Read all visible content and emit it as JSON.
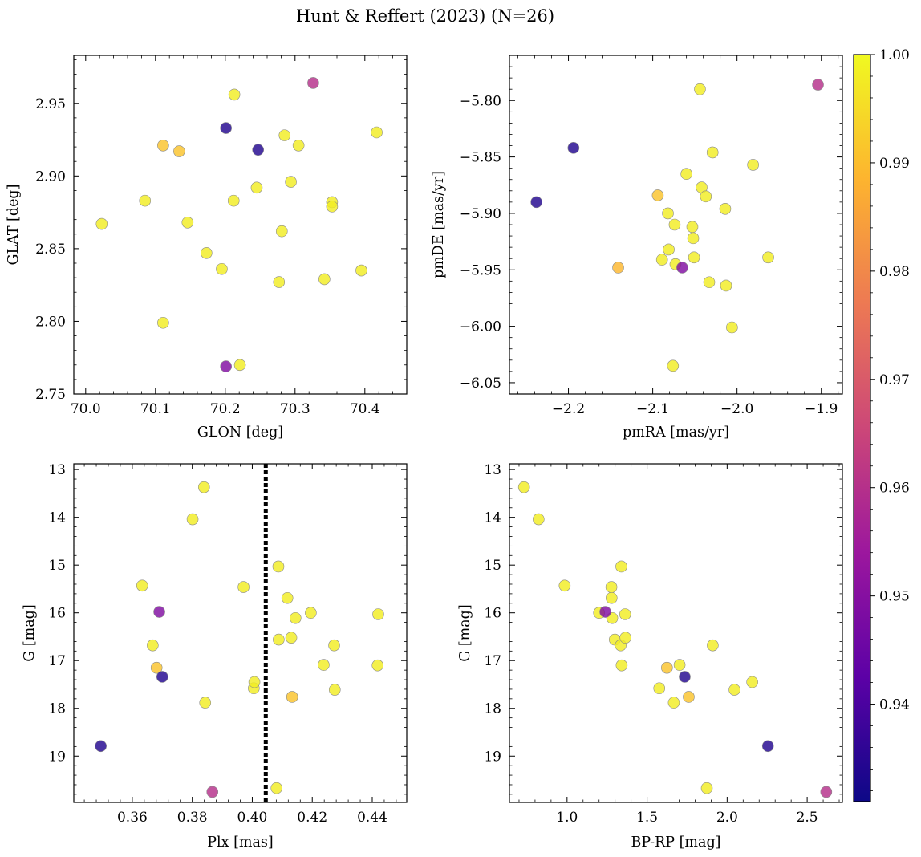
{
  "chart_data": {
    "title": "Hunt & Reffert (2023) (N=26)",
    "colormap": "plasma",
    "colorbar": {
      "range": [
        0.931,
        1.0
      ],
      "ticks": [
        0.94,
        0.95,
        0.96,
        0.97,
        0.98,
        0.99,
        1.0
      ],
      "tick_labels": [
        "0.94",
        "0.95",
        "0.96",
        "0.97",
        "0.98",
        "0.99",
        "1.00"
      ],
      "gradient_stops": [
        "#0d0887",
        "#5c01a6",
        "#9c179e",
        "#cc4778",
        "#ed7953",
        "#fdb42f",
        "#f0f921"
      ]
    },
    "charts": [
      {
        "type": "scatter",
        "id": "radec",
        "xlabel": "GLON [deg]",
        "ylabel": "GLAT [deg]",
        "xlim": [
          69.983,
          70.46
        ],
        "ylim": [
          2.75,
          2.983
        ],
        "x_ticks": [
          70.0,
          70.1,
          70.2,
          70.3,
          70.4
        ],
        "x_tick_labels": [
          "70.0",
          "70.1",
          "70.2",
          "70.3",
          "70.4"
        ],
        "y_ticks": [
          2.75,
          2.8,
          2.85,
          2.9,
          2.95
        ],
        "y_tick_labels": [
          "2.75",
          "2.80",
          "2.85",
          "2.90",
          "2.95"
        ],
        "points": [
          {
            "x": 70.023,
            "y": 2.867,
            "p": 0.998
          },
          {
            "x": 70.085,
            "y": 2.883,
            "p": 0.998
          },
          {
            "x": 70.111,
            "y": 2.921,
            "p": 0.991
          },
          {
            "x": 70.134,
            "y": 2.917,
            "p": 0.991
          },
          {
            "x": 70.146,
            "y": 2.868,
            "p": 0.998
          },
          {
            "x": 70.111,
            "y": 2.799,
            "p": 0.998
          },
          {
            "x": 70.173,
            "y": 2.847,
            "p": 0.998
          },
          {
            "x": 70.195,
            "y": 2.836,
            "p": 0.998
          },
          {
            "x": 70.201,
            "y": 2.933,
            "p": 0.934
          },
          {
            "x": 70.213,
            "y": 2.956,
            "p": 0.998
          },
          {
            "x": 70.212,
            "y": 2.883,
            "p": 0.998
          },
          {
            "x": 70.201,
            "y": 2.769,
            "p": 0.949
          },
          {
            "x": 70.221,
            "y": 2.77,
            "p": 0.998
          },
          {
            "x": 70.245,
            "y": 2.892,
            "p": 0.998
          },
          {
            "x": 70.247,
            "y": 2.918,
            "p": 0.934
          },
          {
            "x": 70.277,
            "y": 2.827,
            "p": 0.998
          },
          {
            "x": 70.281,
            "y": 2.862,
            "p": 0.998
          },
          {
            "x": 70.285,
            "y": 2.928,
            "p": 0.998
          },
          {
            "x": 70.294,
            "y": 2.896,
            "p": 0.998
          },
          {
            "x": 70.305,
            "y": 2.921,
            "p": 0.998
          },
          {
            "x": 70.326,
            "y": 2.964,
            "p": 0.96
          },
          {
            "x": 70.342,
            "y": 2.829,
            "p": 0.998
          },
          {
            "x": 70.353,
            "y": 2.882,
            "p": 0.998
          },
          {
            "x": 70.353,
            "y": 2.879,
            "p": 0.998
          },
          {
            "x": 70.395,
            "y": 2.835,
            "p": 0.998
          },
          {
            "x": 70.417,
            "y": 2.93,
            "p": 0.998
          }
        ]
      },
      {
        "type": "scatter",
        "id": "pm",
        "xlabel": "pmRA [mas/yr]",
        "ylabel": "pmDE [mas/yr]",
        "xlim": [
          -2.27,
          -1.875
        ],
        "ylim": [
          -6.06,
          -5.76
        ],
        "x_ticks": [
          -2.2,
          -2.1,
          -2.0,
          -1.9
        ],
        "x_tick_labels": [
          "−2.2",
          "−2.1",
          "−2.0",
          "−1.9"
        ],
        "y_ticks": [
          -6.05,
          -6.0,
          -5.95,
          -5.9,
          -5.85,
          -5.8
        ],
        "y_tick_labels": [
          "−6.05",
          "−6.00",
          "−5.95",
          "−5.90",
          "−5.85",
          "−5.80"
        ],
        "points": [
          {
            "x": -2.238,
            "y": -5.89,
            "p": 0.934
          },
          {
            "x": -2.194,
            "y": -5.842,
            "p": 0.934
          },
          {
            "x": -2.141,
            "y": -5.948,
            "p": 0.989
          },
          {
            "x": -2.094,
            "y": -5.884,
            "p": 0.991
          },
          {
            "x": -2.089,
            "y": -5.941,
            "p": 0.998
          },
          {
            "x": -2.082,
            "y": -5.9,
            "p": 0.998
          },
          {
            "x": -2.081,
            "y": -5.932,
            "p": 0.998
          },
          {
            "x": -2.076,
            "y": -6.035,
            "p": 0.998
          },
          {
            "x": -2.074,
            "y": -5.91,
            "p": 0.998
          },
          {
            "x": -2.073,
            "y": -5.945,
            "p": 0.998
          },
          {
            "x": -2.065,
            "y": -5.948,
            "p": 0.949
          },
          {
            "x": -2.06,
            "y": -5.865,
            "p": 0.998
          },
          {
            "x": -2.053,
            "y": -5.912,
            "p": 0.998
          },
          {
            "x": -2.052,
            "y": -5.922,
            "p": 0.998
          },
          {
            "x": -2.051,
            "y": -5.939,
            "p": 0.998
          },
          {
            "x": -2.044,
            "y": -5.79,
            "p": 0.998
          },
          {
            "x": -2.042,
            "y": -5.877,
            "p": 0.998
          },
          {
            "x": -2.037,
            "y": -5.885,
            "p": 0.998
          },
          {
            "x": -2.033,
            "y": -5.961,
            "p": 0.998
          },
          {
            "x": -2.029,
            "y": -5.846,
            "p": 0.998
          },
          {
            "x": -2.014,
            "y": -5.896,
            "p": 0.998
          },
          {
            "x": -2.013,
            "y": -5.964,
            "p": 0.998
          },
          {
            "x": -2.006,
            "y": -6.001,
            "p": 0.998
          },
          {
            "x": -1.981,
            "y": -5.857,
            "p": 0.998
          },
          {
            "x": -1.963,
            "y": -5.939,
            "p": 0.998
          },
          {
            "x": -1.904,
            "y": -5.786,
            "p": 0.96
          }
        ]
      },
      {
        "type": "scatter",
        "id": "plx",
        "xlabel": "Plx [mas]",
        "ylabel": "G [mag]",
        "xlim": [
          0.3405,
          0.4515
        ],
        "ylim": [
          19.97,
          12.88
        ],
        "x_ticks": [
          0.36,
          0.38,
          0.4,
          0.42,
          0.44
        ],
        "x_tick_labels": [
          "0.36",
          "0.38",
          "0.40",
          "0.42",
          "0.44"
        ],
        "y_ticks": [
          13,
          14,
          15,
          16,
          17,
          18,
          19
        ],
        "y_tick_labels": [
          "13",
          "14",
          "15",
          "16",
          "17",
          "18",
          "19"
        ],
        "vline": {
          "x": 0.4045,
          "style": "dotted"
        },
        "points": [
          {
            "x": 0.3495,
            "y": 18.79,
            "p": 0.934
          },
          {
            "x": 0.3633,
            "y": 15.43,
            "p": 0.998
          },
          {
            "x": 0.3668,
            "y": 16.68,
            "p": 0.998
          },
          {
            "x": 0.3681,
            "y": 17.15,
            "p": 0.991
          },
          {
            "x": 0.369,
            "y": 15.98,
            "p": 0.949
          },
          {
            "x": 0.37,
            "y": 17.34,
            "p": 0.934
          },
          {
            "x": 0.3801,
            "y": 14.04,
            "p": 0.998
          },
          {
            "x": 0.3839,
            "y": 13.37,
            "p": 0.998
          },
          {
            "x": 0.3843,
            "y": 17.88,
            "p": 0.998
          },
          {
            "x": 0.3867,
            "y": 19.75,
            "p": 0.96
          },
          {
            "x": 0.3971,
            "y": 15.46,
            "p": 0.998
          },
          {
            "x": 0.4005,
            "y": 17.58,
            "p": 0.998
          },
          {
            "x": 0.4007,
            "y": 17.45,
            "p": 0.998
          },
          {
            "x": 0.4081,
            "y": 19.67,
            "p": 0.998
          },
          {
            "x": 0.4087,
            "y": 15.03,
            "p": 0.998
          },
          {
            "x": 0.4088,
            "y": 16.56,
            "p": 0.998
          },
          {
            "x": 0.4117,
            "y": 15.69,
            "p": 0.998
          },
          {
            "x": 0.413,
            "y": 16.52,
            "p": 0.998
          },
          {
            "x": 0.4133,
            "y": 17.76,
            "p": 0.991
          },
          {
            "x": 0.4144,
            "y": 16.11,
            "p": 0.998
          },
          {
            "x": 0.4195,
            "y": 16.0,
            "p": 0.998
          },
          {
            "x": 0.4238,
            "y": 17.09,
            "p": 0.998
          },
          {
            "x": 0.4273,
            "y": 16.68,
            "p": 0.998
          },
          {
            "x": 0.4275,
            "y": 17.61,
            "p": 0.998
          },
          {
            "x": 0.4418,
            "y": 17.1,
            "p": 0.998
          },
          {
            "x": 0.442,
            "y": 16.03,
            "p": 0.998
          }
        ]
      },
      {
        "type": "scatter",
        "id": "cmd",
        "xlabel": "BP-RP [mag]",
        "ylabel": "G [mag]",
        "xlim": [
          0.64,
          2.72
        ],
        "ylim": [
          19.97,
          12.88
        ],
        "x_ticks": [
          1.0,
          1.5,
          2.0,
          2.5
        ],
        "x_tick_labels": [
          "1.0",
          "1.5",
          "2.0",
          "2.5"
        ],
        "y_ticks": [
          13,
          14,
          15,
          16,
          17,
          18,
          19
        ],
        "y_tick_labels": [
          "13",
          "14",
          "15",
          "16",
          "17",
          "18",
          "19"
        ],
        "points": [
          {
            "x": 0.731,
            "y": 13.37,
            "p": 0.998
          },
          {
            "x": 0.822,
            "y": 14.04,
            "p": 0.998
          },
          {
            "x": 0.985,
            "y": 15.43,
            "p": 0.998
          },
          {
            "x": 1.2,
            "y": 16.0,
            "p": 0.998
          },
          {
            "x": 1.239,
            "y": 15.98,
            "p": 0.949
          },
          {
            "x": 1.277,
            "y": 15.46,
            "p": 0.998
          },
          {
            "x": 1.278,
            "y": 15.69,
            "p": 0.998
          },
          {
            "x": 1.282,
            "y": 16.11,
            "p": 0.998
          },
          {
            "x": 1.298,
            "y": 16.56,
            "p": 0.998
          },
          {
            "x": 1.335,
            "y": 16.68,
            "p": 0.998
          },
          {
            "x": 1.339,
            "y": 15.03,
            "p": 0.998
          },
          {
            "x": 1.341,
            "y": 17.1,
            "p": 0.998
          },
          {
            "x": 1.363,
            "y": 16.03,
            "p": 0.998
          },
          {
            "x": 1.365,
            "y": 16.52,
            "p": 0.998
          },
          {
            "x": 1.576,
            "y": 17.58,
            "p": 0.998
          },
          {
            "x": 1.624,
            "y": 17.15,
            "p": 0.991
          },
          {
            "x": 1.667,
            "y": 17.88,
            "p": 0.998
          },
          {
            "x": 1.703,
            "y": 17.09,
            "p": 0.998
          },
          {
            "x": 1.735,
            "y": 17.34,
            "p": 0.934
          },
          {
            "x": 1.76,
            "y": 17.76,
            "p": 0.991
          },
          {
            "x": 1.873,
            "y": 19.67,
            "p": 0.998
          },
          {
            "x": 1.91,
            "y": 16.68,
            "p": 0.998
          },
          {
            "x": 2.046,
            "y": 17.61,
            "p": 0.998
          },
          {
            "x": 2.157,
            "y": 17.45,
            "p": 0.998
          },
          {
            "x": 2.255,
            "y": 18.79,
            "p": 0.934
          },
          {
            "x": 2.619,
            "y": 19.75,
            "p": 0.96
          }
        ]
      }
    ]
  }
}
